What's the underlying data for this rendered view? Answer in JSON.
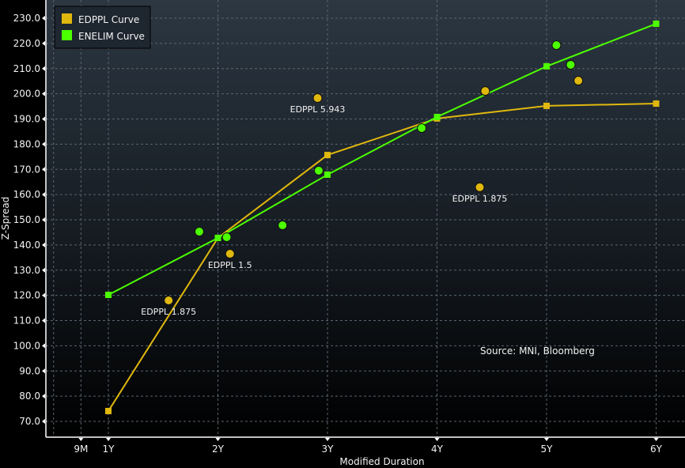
{
  "chart_data": {
    "type": "line+scatter",
    "title": "",
    "xlabel": "Modified Duration",
    "ylabel": "Z-Spread",
    "xlim": [
      0.45,
      6.3
    ],
    "ylim": [
      65,
      237
    ],
    "x_ticks": [
      {
        "value": 0.75,
        "label": "9M"
      },
      {
        "value": 1,
        "label": "1Y"
      },
      {
        "value": 2,
        "label": "2Y"
      },
      {
        "value": 3,
        "label": "3Y"
      },
      {
        "value": 4,
        "label": "4Y"
      },
      {
        "value": 5,
        "label": "5Y"
      },
      {
        "value": 6,
        "label": "6Y"
      }
    ],
    "y_ticks": [
      70,
      80,
      90,
      100,
      110,
      120,
      130,
      140,
      150,
      160,
      170,
      180,
      190,
      200,
      210,
      220,
      230
    ],
    "y_tick_labels": [
      "70.0",
      "80.0",
      "90.0",
      "100.0",
      "110.0",
      "120.0",
      "130.0",
      "140.0",
      "150.0",
      "160.0",
      "170.0",
      "180.0",
      "190.0",
      "200.0",
      "210.0",
      "220.0",
      "230.0"
    ],
    "grid": true,
    "legend_position": "top-left",
    "annotation": "Source: MNI, Bloomberg",
    "series": [
      {
        "name": "EDPPL Curve",
        "kind": "line",
        "color": "#e0b80e",
        "x": [
          1,
          2,
          3,
          4,
          5,
          6
        ],
        "y": [
          74.1,
          142.8,
          175.7,
          190.2,
          195.2,
          196.1
        ]
      },
      {
        "name": "ENELIM Curve",
        "kind": "line",
        "color": "#4cff00",
        "x": [
          1,
          2,
          3,
          4,
          5,
          6
        ],
        "y": [
          120.2,
          142.8,
          167.9,
          190.8,
          210.9,
          227.8
        ]
      }
    ],
    "scatter": [
      {
        "group": "EDPPL",
        "color": "#e0b80e",
        "points": [
          {
            "x": 1.55,
            "y": 118.0,
            "label": "EDPPL 1.875"
          },
          {
            "x": 2.11,
            "y": 136.5,
            "label": "EDPPL 1.5"
          },
          {
            "x": 2.91,
            "y": 198.3,
            "label": "EDPPL 5.943"
          },
          {
            "x": 4.39,
            "y": 162.9,
            "label": "EDPPL 1.875"
          },
          {
            "x": 4.44,
            "y": 201.1,
            "label": ""
          },
          {
            "x": 5.29,
            "y": 205.2,
            "label": ""
          }
        ]
      },
      {
        "group": "ENELIM",
        "color": "#4cff00",
        "points": [
          {
            "x": 1.83,
            "y": 145.3,
            "label": ""
          },
          {
            "x": 2.08,
            "y": 143.1,
            "label": ""
          },
          {
            "x": 2.59,
            "y": 147.8,
            "label": ""
          },
          {
            "x": 2.92,
            "y": 169.5,
            "label": ""
          },
          {
            "x": 3.86,
            "y": 186.4,
            "label": ""
          },
          {
            "x": 5.09,
            "y": 219.3,
            "label": ""
          },
          {
            "x": 5.22,
            "y": 211.5,
            "label": ""
          }
        ]
      }
    ]
  }
}
